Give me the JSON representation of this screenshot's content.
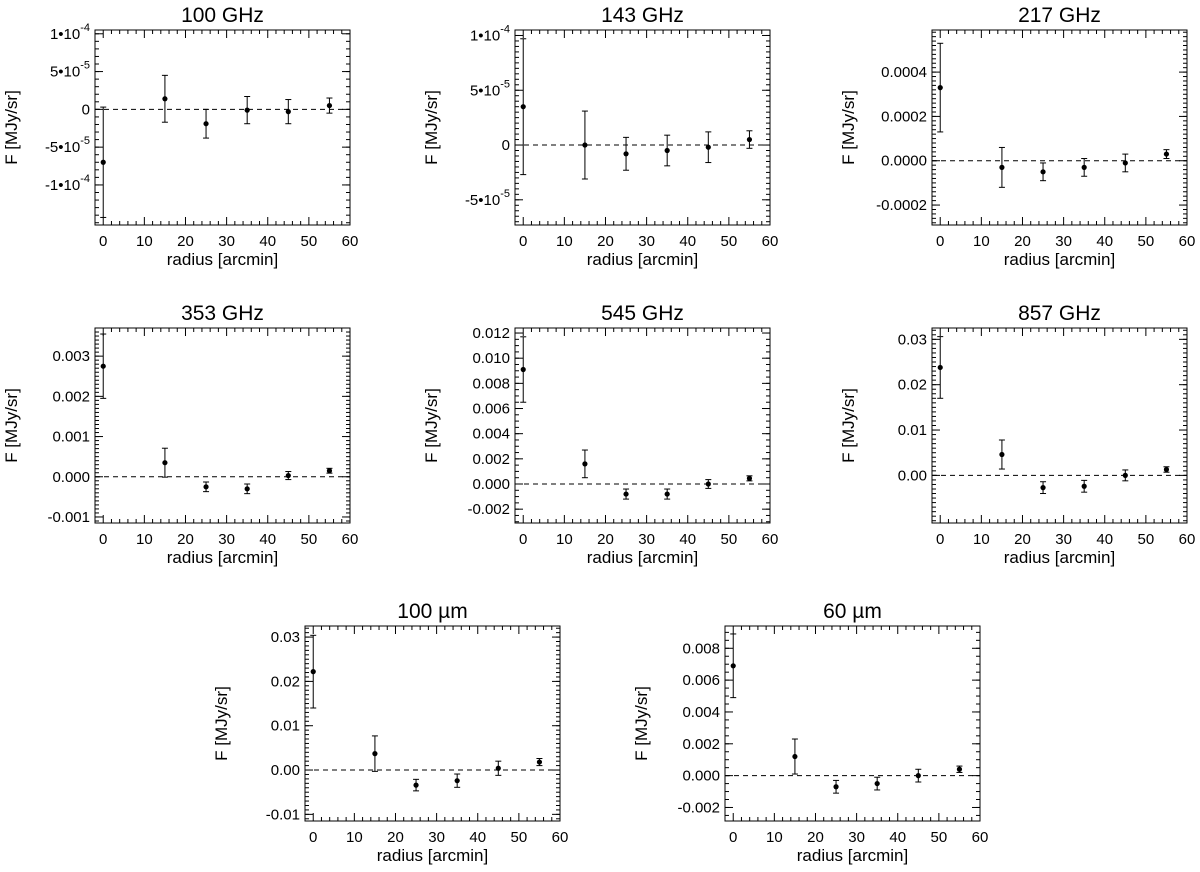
{
  "chart_data": [
    {
      "type": "scatter",
      "title": "100 GHz",
      "xlabel": "radius [arcmin]",
      "ylabel": "F [MJy/sr]",
      "xlim": [
        -2,
        60
      ],
      "ylim": [
        -0.000153,
        0.000105
      ],
      "x_ticks": [
        0,
        10,
        20,
        30,
        40,
        50,
        60
      ],
      "x_tick_labels": [
        "0",
        "10",
        "20",
        "30",
        "40",
        "50",
        "60"
      ],
      "y_ticks": [
        0.0001,
        5e-05,
        0,
        -5e-05,
        -0.0001
      ],
      "y_tick_labels": [
        "1•10",
        "5•10",
        "0",
        "-5•10",
        "-1•10"
      ],
      "y_tick_exponents": [
        "-4",
        "-5",
        "",
        "-5",
        "-4"
      ],
      "zero_line": true,
      "points": [
        {
          "x": 0,
          "y": -7e-05,
          "err": 7.3e-05
        },
        {
          "x": 15,
          "y": 1.4e-05,
          "err": 3.1e-05
        },
        {
          "x": 25,
          "y": -1.9e-05,
          "err": 1.9e-05
        },
        {
          "x": 35,
          "y": -1e-06,
          "err": 1.8e-05
        },
        {
          "x": 45,
          "y": -3e-06,
          "err": 1.6e-05
        },
        {
          "x": 55,
          "y": 5e-06,
          "err": 1e-05
        }
      ]
    },
    {
      "type": "scatter",
      "title": "143 GHz",
      "xlabel": "radius [arcmin]",
      "ylabel": "F [MJy/sr]",
      "xlim": [
        -2,
        60
      ],
      "ylim": [
        -7.3e-05,
        0.000105
      ],
      "x_ticks": [
        0,
        10,
        20,
        30,
        40,
        50,
        60
      ],
      "x_tick_labels": [
        "0",
        "10",
        "20",
        "30",
        "40",
        "50",
        "60"
      ],
      "y_ticks": [
        0.0001,
        5e-05,
        0,
        -5e-05
      ],
      "y_tick_labels": [
        "1•10",
        "5•10",
        "0",
        "-5•10"
      ],
      "y_tick_exponents": [
        "-4",
        "-5",
        "",
        "-5"
      ],
      "zero_line": true,
      "points": [
        {
          "x": 0,
          "y": 3.5e-05,
          "err": 6.2e-05
        },
        {
          "x": 15,
          "y": 0.0,
          "err": 3.1e-05
        },
        {
          "x": 25,
          "y": -8e-06,
          "err": 1.5e-05
        },
        {
          "x": 35,
          "y": -5e-06,
          "err": 1.4e-05
        },
        {
          "x": 45,
          "y": -2e-06,
          "err": 1.4e-05
        },
        {
          "x": 55,
          "y": 5e-06,
          "err": 8e-06
        }
      ]
    },
    {
      "type": "scatter",
      "title": "217 GHz",
      "xlabel": "radius [arcmin]",
      "ylabel": "F [MJy/sr]",
      "xlim": [
        -2,
        60
      ],
      "ylim": [
        -0.00029,
        0.00059
      ],
      "x_ticks": [
        0,
        10,
        20,
        30,
        40,
        50,
        60
      ],
      "x_tick_labels": [
        "0",
        "10",
        "20",
        "30",
        "40",
        "50",
        "60"
      ],
      "y_ticks": [
        0.0004,
        0.0002,
        0,
        -0.0002
      ],
      "y_tick_labels": [
        "0.0004",
        "0.0002",
        "0.0000",
        "-0.0002"
      ],
      "zero_line": true,
      "points": [
        {
          "x": 0,
          "y": 0.00033,
          "err": 0.0002
        },
        {
          "x": 15,
          "y": -3e-05,
          "err": 9e-05
        },
        {
          "x": 25,
          "y": -5e-05,
          "err": 4e-05
        },
        {
          "x": 35,
          "y": -3e-05,
          "err": 4e-05
        },
        {
          "x": 45,
          "y": -1e-05,
          "err": 4e-05
        },
        {
          "x": 55,
          "y": 3e-05,
          "err": 2e-05
        }
      ]
    },
    {
      "type": "scatter",
      "title": "353 GHz",
      "xlabel": "radius [arcmin]",
      "ylabel": "F [MJy/sr]",
      "xlim": [
        -2,
        60
      ],
      "ylim": [
        -0.00115,
        0.0037
      ],
      "x_ticks": [
        0,
        10,
        20,
        30,
        40,
        50,
        60
      ],
      "x_tick_labels": [
        "0",
        "10",
        "20",
        "30",
        "40",
        "50",
        "60"
      ],
      "y_ticks": [
        0.003,
        0.002,
        0.001,
        0,
        -0.001
      ],
      "y_tick_labels": [
        "0.003",
        "0.002",
        "0.001",
        "0.000",
        "-0.001"
      ],
      "zero_line": true,
      "points": [
        {
          "x": 0,
          "y": 0.00275,
          "err": 0.0008
        },
        {
          "x": 15,
          "y": 0.00035,
          "err": 0.00036
        },
        {
          "x": 25,
          "y": -0.00025,
          "err": 0.00012
        },
        {
          "x": 35,
          "y": -0.0003,
          "err": 0.00012
        },
        {
          "x": 45,
          "y": 3e-05,
          "err": 0.0001
        },
        {
          "x": 55,
          "y": 0.00015,
          "err": 6e-05
        }
      ]
    },
    {
      "type": "scatter",
      "title": "545 GHz",
      "xlabel": "radius [arcmin]",
      "ylabel": "F [MJy/sr]",
      "xlim": [
        -2,
        60
      ],
      "ylim": [
        -0.0031,
        0.0124
      ],
      "x_ticks": [
        0,
        10,
        20,
        30,
        40,
        50,
        60
      ],
      "x_tick_labels": [
        "0",
        "10",
        "20",
        "30",
        "40",
        "50",
        "60"
      ],
      "y_ticks": [
        0.012,
        0.01,
        0.008,
        0.006,
        0.004,
        0.002,
        0,
        -0.002
      ],
      "y_tick_labels": [
        "0.012",
        "0.010",
        "0.008",
        "0.006",
        "0.004",
        "0.002",
        "0.000",
        "-0.002"
      ],
      "zero_line": true,
      "points": [
        {
          "x": 0,
          "y": 0.0091,
          "err": 0.0026
        },
        {
          "x": 15,
          "y": 0.0016,
          "err": 0.0011
        },
        {
          "x": 25,
          "y": -0.0008,
          "err": 0.0004
        },
        {
          "x": 35,
          "y": -0.0008,
          "err": 0.0004
        },
        {
          "x": 45,
          "y": 0.0,
          "err": 0.00035
        },
        {
          "x": 55,
          "y": 0.00045,
          "err": 0.0002
        }
      ]
    },
    {
      "type": "scatter",
      "title": "857 GHz",
      "xlabel": "radius [arcmin]",
      "ylabel": "F [MJy/sr]",
      "xlim": [
        -2,
        60
      ],
      "ylim": [
        -0.0105,
        0.0325
      ],
      "x_ticks": [
        0,
        10,
        20,
        30,
        40,
        50,
        60
      ],
      "x_tick_labels": [
        "0",
        "10",
        "20",
        "30",
        "40",
        "50",
        "60"
      ],
      "y_ticks": [
        0.03,
        0.02,
        0.01,
        0
      ],
      "y_tick_labels": [
        "0.03",
        "0.02",
        "0.01",
        "0.00"
      ],
      "zero_line": true,
      "points": [
        {
          "x": 0,
          "y": 0.0238,
          "err": 0.0068
        },
        {
          "x": 15,
          "y": 0.0046,
          "err": 0.0032
        },
        {
          "x": 25,
          "y": -0.0027,
          "err": 0.0013
        },
        {
          "x": 35,
          "y": -0.0024,
          "err": 0.0013
        },
        {
          "x": 45,
          "y": 0.0,
          "err": 0.0012
        },
        {
          "x": 55,
          "y": 0.0013,
          "err": 0.0006
        }
      ]
    },
    {
      "type": "scatter",
      "title": "100 µm",
      "xlabel": "radius [arcmin]",
      "ylabel": "F [MJy/sr]",
      "xlim": [
        -2,
        60
      ],
      "ylim": [
        -0.0115,
        0.0325
      ],
      "x_ticks": [
        0,
        10,
        20,
        30,
        40,
        50,
        60
      ],
      "x_tick_labels": [
        "0",
        "10",
        "20",
        "30",
        "40",
        "50",
        "60"
      ],
      "y_ticks": [
        0.03,
        0.02,
        0.01,
        0,
        -0.01
      ],
      "y_tick_labels": [
        "0.03",
        "0.02",
        "0.01",
        "0.00",
        "-0.01"
      ],
      "zero_line": true,
      "points": [
        {
          "x": 0,
          "y": 0.0222,
          "err": 0.0082
        },
        {
          "x": 15,
          "y": 0.0037,
          "err": 0.004
        },
        {
          "x": 25,
          "y": -0.0034,
          "err": 0.0013
        },
        {
          "x": 35,
          "y": -0.0024,
          "err": 0.0015
        },
        {
          "x": 45,
          "y": 0.0004,
          "err": 0.0016
        },
        {
          "x": 55,
          "y": 0.0018,
          "err": 0.0008
        }
      ]
    },
    {
      "type": "scatter",
      "title": "60 µm",
      "xlabel": "radius [arcmin]",
      "ylabel": "F [MJy/sr]",
      "xlim": [
        -2,
        60
      ],
      "ylim": [
        -0.00285,
        0.0094
      ],
      "x_ticks": [
        0,
        10,
        20,
        30,
        40,
        50,
        60
      ],
      "x_tick_labels": [
        "0",
        "10",
        "20",
        "30",
        "40",
        "50",
        "60"
      ],
      "y_ticks": [
        0.008,
        0.006,
        0.004,
        0.002,
        0,
        -0.002
      ],
      "y_tick_labels": [
        "0.008",
        "0.006",
        "0.004",
        "0.002",
        "0.000",
        "-0.002"
      ],
      "zero_line": true,
      "points": [
        {
          "x": 0,
          "y": 0.0069,
          "err": 0.002
        },
        {
          "x": 15,
          "y": 0.0012,
          "err": 0.0011
        },
        {
          "x": 25,
          "y": -0.0007,
          "err": 0.0004
        },
        {
          "x": 35,
          "y": -0.0005,
          "err": 0.0004
        },
        {
          "x": 45,
          "y": 0.0,
          "err": 0.0004
        },
        {
          "x": 55,
          "y": 0.0004,
          "err": 0.0002
        }
      ]
    }
  ]
}
